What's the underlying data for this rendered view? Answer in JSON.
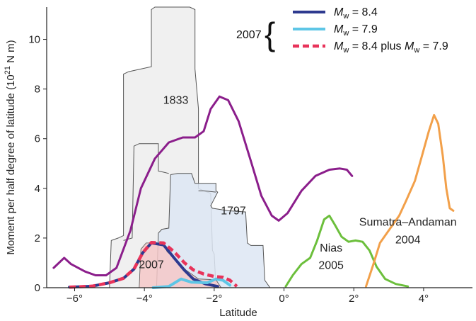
{
  "chart_data": {
    "type": "line",
    "title": "",
    "xlabel": "Latitude",
    "ylabel_main": "Moment per half degree of latitude (10",
    "ylabel_sup": "21",
    "ylabel_end": " N m)",
    "xlim": [
      -6.8,
      5.4
    ],
    "ylim": [
      0,
      11.3
    ],
    "x_ticks": [
      -6,
      -4,
      -2,
      0,
      2,
      4
    ],
    "x_tick_labels": [
      "−6°",
      "−4°",
      "−2°",
      "0°",
      "2°",
      "4°"
    ],
    "y_ticks": [
      0,
      2,
      4,
      6,
      8,
      10
    ],
    "y_tick_labels": [
      "0",
      "2",
      "4",
      "6",
      "8",
      "10"
    ],
    "colors": {
      "mw84": "#2e3a8f",
      "mw79": "#5ec6e6",
      "combined": "#e8335a",
      "fill2007": "#f5c8c8",
      "purple": "#8b1e8b",
      "nias": "#6cbf3c",
      "sumatra": "#f2a04a",
      "region1833": "#eeeeee",
      "region1797": "#dde6f3",
      "outline": "#555555"
    },
    "legend": {
      "group_label": "2007",
      "placement": "top-right",
      "entries": [
        {
          "series": "mw84",
          "prefix": "M",
          "sub": "w",
          "suffix": " = 8.4",
          "prefix2": "",
          "sub2": "",
          "suffix2": ""
        },
        {
          "series": "mw79",
          "prefix": "M",
          "sub": "w",
          "suffix": " = 7.9",
          "prefix2": "",
          "sub2": "",
          "suffix2": ""
        },
        {
          "series": "combined",
          "prefix": "M",
          "sub": "w",
          "suffix": " = 8.4 plus ",
          "prefix2": "M",
          "sub2": "w",
          "suffix2": " = 7.9"
        }
      ]
    },
    "regions": [
      {
        "label": "1833",
        "key": "region1833",
        "label_pos": [
          -3.1,
          7.4
        ],
        "outline": [
          [
            -5.0,
            0
          ],
          [
            -4.95,
            1.9
          ],
          [
            -4.75,
            2.0
          ],
          [
            -4.6,
            2.1
          ],
          [
            -4.6,
            8.6
          ],
          [
            -4.45,
            8.7
          ],
          [
            -3.8,
            8.9
          ],
          [
            -3.8,
            11.2
          ],
          [
            -3.7,
            11.3
          ],
          [
            -2.7,
            11.3
          ],
          [
            -2.55,
            11.2
          ],
          [
            -2.55,
            8.8
          ],
          [
            -2.45,
            7.2
          ],
          [
            -2.45,
            4.0
          ],
          [
            -2.3,
            3.9
          ],
          [
            -2.1,
            3.8
          ],
          [
            -2.05,
            1.5
          ],
          [
            -2.0,
            1.35
          ],
          [
            -1.95,
            0
          ]
        ]
      },
      {
        "label": "1797",
        "key": "region1797",
        "label_pos": [
          -1.45,
          2.95
        ],
        "outline": [
          [
            -3.65,
            0
          ],
          [
            -3.6,
            2.2
          ],
          [
            -3.5,
            2.35
          ],
          [
            -3.3,
            2.4
          ],
          [
            -3.25,
            4.55
          ],
          [
            -3.05,
            4.6
          ],
          [
            -2.65,
            4.6
          ],
          [
            -2.55,
            4.2
          ],
          [
            -1.95,
            4.2
          ],
          [
            -1.95,
            3.9
          ],
          [
            -1.9,
            3.85
          ],
          [
            -2.1,
            3.3
          ],
          [
            -2.05,
            3.2
          ],
          [
            -1.6,
            3.1
          ],
          [
            -1.1,
            3.05
          ],
          [
            -1.05,
            1.8
          ],
          [
            -0.95,
            1.7
          ],
          [
            -0.6,
            1.7
          ],
          [
            -0.55,
            0.3
          ],
          [
            -0.4,
            0
          ]
        ]
      }
    ],
    "inner_lines": [
      {
        "points": [
          [
            -4.6,
            1.9
          ],
          [
            -4.35,
            2.0
          ],
          [
            -4.3,
            5.7
          ],
          [
            -4.15,
            5.8
          ],
          [
            -3.6,
            5.8
          ],
          [
            -3.6,
            4.7
          ],
          [
            -3.45,
            4.65
          ],
          [
            -3.3,
            4.6
          ]
        ]
      },
      {
        "points": [
          [
            -2.45,
            3.9
          ],
          [
            -2.3,
            3.9
          ],
          [
            -1.95,
            3.85
          ]
        ]
      }
    ],
    "fill_2007": {
      "label": "2007",
      "label_pos": [
        -3.8,
        0.78
      ],
      "points": [
        [
          -4.15,
          0
        ],
        [
          -4.1,
          1.55
        ],
        [
          -3.95,
          1.8
        ],
        [
          -3.45,
          1.8
        ],
        [
          -3.35,
          1.45
        ],
        [
          -3.0,
          1.0
        ],
        [
          -2.8,
          0.7
        ],
        [
          -2.45,
          0.35
        ],
        [
          -1.95,
          0.32
        ],
        [
          -1.8,
          0
        ]
      ]
    },
    "series": [
      {
        "key": "purple",
        "width": 3,
        "dash": "",
        "points": [
          [
            -6.6,
            0.8
          ],
          [
            -6.3,
            1.2
          ],
          [
            -6.1,
            0.95
          ],
          [
            -5.7,
            0.65
          ],
          [
            -5.4,
            0.5
          ],
          [
            -5.1,
            0.5
          ],
          [
            -4.8,
            0.8
          ],
          [
            -4.4,
            2.3
          ],
          [
            -4.1,
            4.0
          ],
          [
            -3.7,
            5.2
          ],
          [
            -3.3,
            5.85
          ],
          [
            -2.9,
            6.05
          ],
          [
            -2.55,
            6.05
          ],
          [
            -2.3,
            6.3
          ],
          [
            -2.1,
            7.2
          ],
          [
            -1.85,
            7.7
          ],
          [
            -1.6,
            7.55
          ],
          [
            -1.3,
            6.7
          ],
          [
            -0.95,
            5.1
          ],
          [
            -0.65,
            3.7
          ],
          [
            -0.35,
            2.9
          ],
          [
            -0.15,
            2.7
          ],
          [
            0.1,
            3.0
          ],
          [
            0.5,
            3.9
          ],
          [
            0.9,
            4.5
          ],
          [
            1.3,
            4.75
          ],
          [
            1.6,
            4.8
          ],
          [
            1.8,
            4.75
          ],
          [
            1.95,
            4.5
          ]
        ]
      },
      {
        "key": "nias",
        "width": 3,
        "dash": "",
        "points": [
          [
            0.05,
            0.05
          ],
          [
            0.25,
            0.5
          ],
          [
            0.5,
            0.95
          ],
          [
            0.75,
            1.2
          ],
          [
            0.95,
            1.9
          ],
          [
            1.15,
            2.75
          ],
          [
            1.3,
            2.9
          ],
          [
            1.45,
            2.55
          ],
          [
            1.65,
            2.05
          ],
          [
            1.85,
            1.85
          ],
          [
            2.05,
            1.9
          ],
          [
            2.25,
            1.85
          ],
          [
            2.45,
            1.5
          ],
          [
            2.65,
            0.85
          ],
          [
            2.9,
            0.35
          ],
          [
            3.2,
            0.15
          ],
          [
            3.55,
            0.05
          ]
        ]
      },
      {
        "key": "sumatra",
        "width": 3,
        "dash": "",
        "points": [
          [
            2.35,
            0.05
          ],
          [
            2.55,
            0.9
          ],
          [
            2.75,
            1.8
          ],
          [
            3.05,
            2.4
          ],
          [
            3.3,
            2.9
          ],
          [
            3.5,
            3.5
          ],
          [
            3.75,
            4.3
          ],
          [
            3.95,
            5.3
          ],
          [
            4.15,
            6.3
          ],
          [
            4.3,
            6.95
          ],
          [
            4.42,
            6.6
          ],
          [
            4.55,
            5.3
          ],
          [
            4.65,
            4.0
          ],
          [
            4.75,
            3.2
          ],
          [
            4.85,
            3.1
          ]
        ]
      },
      {
        "key": "mw84",
        "width": 4,
        "dash": "",
        "points": [
          [
            -6.15,
            0.02
          ],
          [
            -5.5,
            0.06
          ],
          [
            -5.0,
            0.2
          ],
          [
            -4.6,
            0.38
          ],
          [
            -4.3,
            0.75
          ],
          [
            -4.05,
            1.4
          ],
          [
            -3.8,
            1.8
          ],
          [
            -3.45,
            1.72
          ],
          [
            -3.15,
            1.2
          ],
          [
            -2.85,
            0.7
          ],
          [
            -2.6,
            0.35
          ],
          [
            -2.25,
            0.15
          ],
          [
            -1.9,
            0.05
          ]
        ]
      },
      {
        "key": "mw79",
        "width": 4,
        "dash": "",
        "points": [
          [
            -3.75,
            0.0
          ],
          [
            -3.3,
            0.05
          ],
          [
            -2.95,
            0.35
          ],
          [
            -2.65,
            0.22
          ],
          [
            -2.2,
            0.2
          ],
          [
            -1.95,
            0.35
          ],
          [
            -1.75,
            0.3
          ],
          [
            -1.55,
            0.1
          ]
        ]
      },
      {
        "key": "combined",
        "width": 4.5,
        "dash": "9 5",
        "points": [
          [
            -6.15,
            0.02
          ],
          [
            -5.5,
            0.06
          ],
          [
            -5.0,
            0.2
          ],
          [
            -4.6,
            0.38
          ],
          [
            -4.3,
            0.75
          ],
          [
            -4.05,
            1.4
          ],
          [
            -3.8,
            1.82
          ],
          [
            -3.45,
            1.8
          ],
          [
            -3.15,
            1.45
          ],
          [
            -2.85,
            1.0
          ],
          [
            -2.6,
            0.72
          ],
          [
            -2.3,
            0.55
          ],
          [
            -2.0,
            0.45
          ],
          [
            -1.75,
            0.42
          ],
          [
            -1.55,
            0.3
          ],
          [
            -1.35,
            0.05
          ]
        ]
      }
    ],
    "annotations": [
      {
        "text": "Nias",
        "x": 1.35,
        "y": 1.45,
        "anchor": "middle"
      },
      {
        "text": "2005",
        "x": 1.35,
        "y": 0.75,
        "anchor": "middle"
      },
      {
        "text": "Sumatra–Andaman",
        "x": 3.55,
        "y": 2.5,
        "anchor": "middle"
      },
      {
        "text": "2004",
        "x": 3.55,
        "y": 1.78,
        "anchor": "middle"
      }
    ],
    "grid": false
  }
}
